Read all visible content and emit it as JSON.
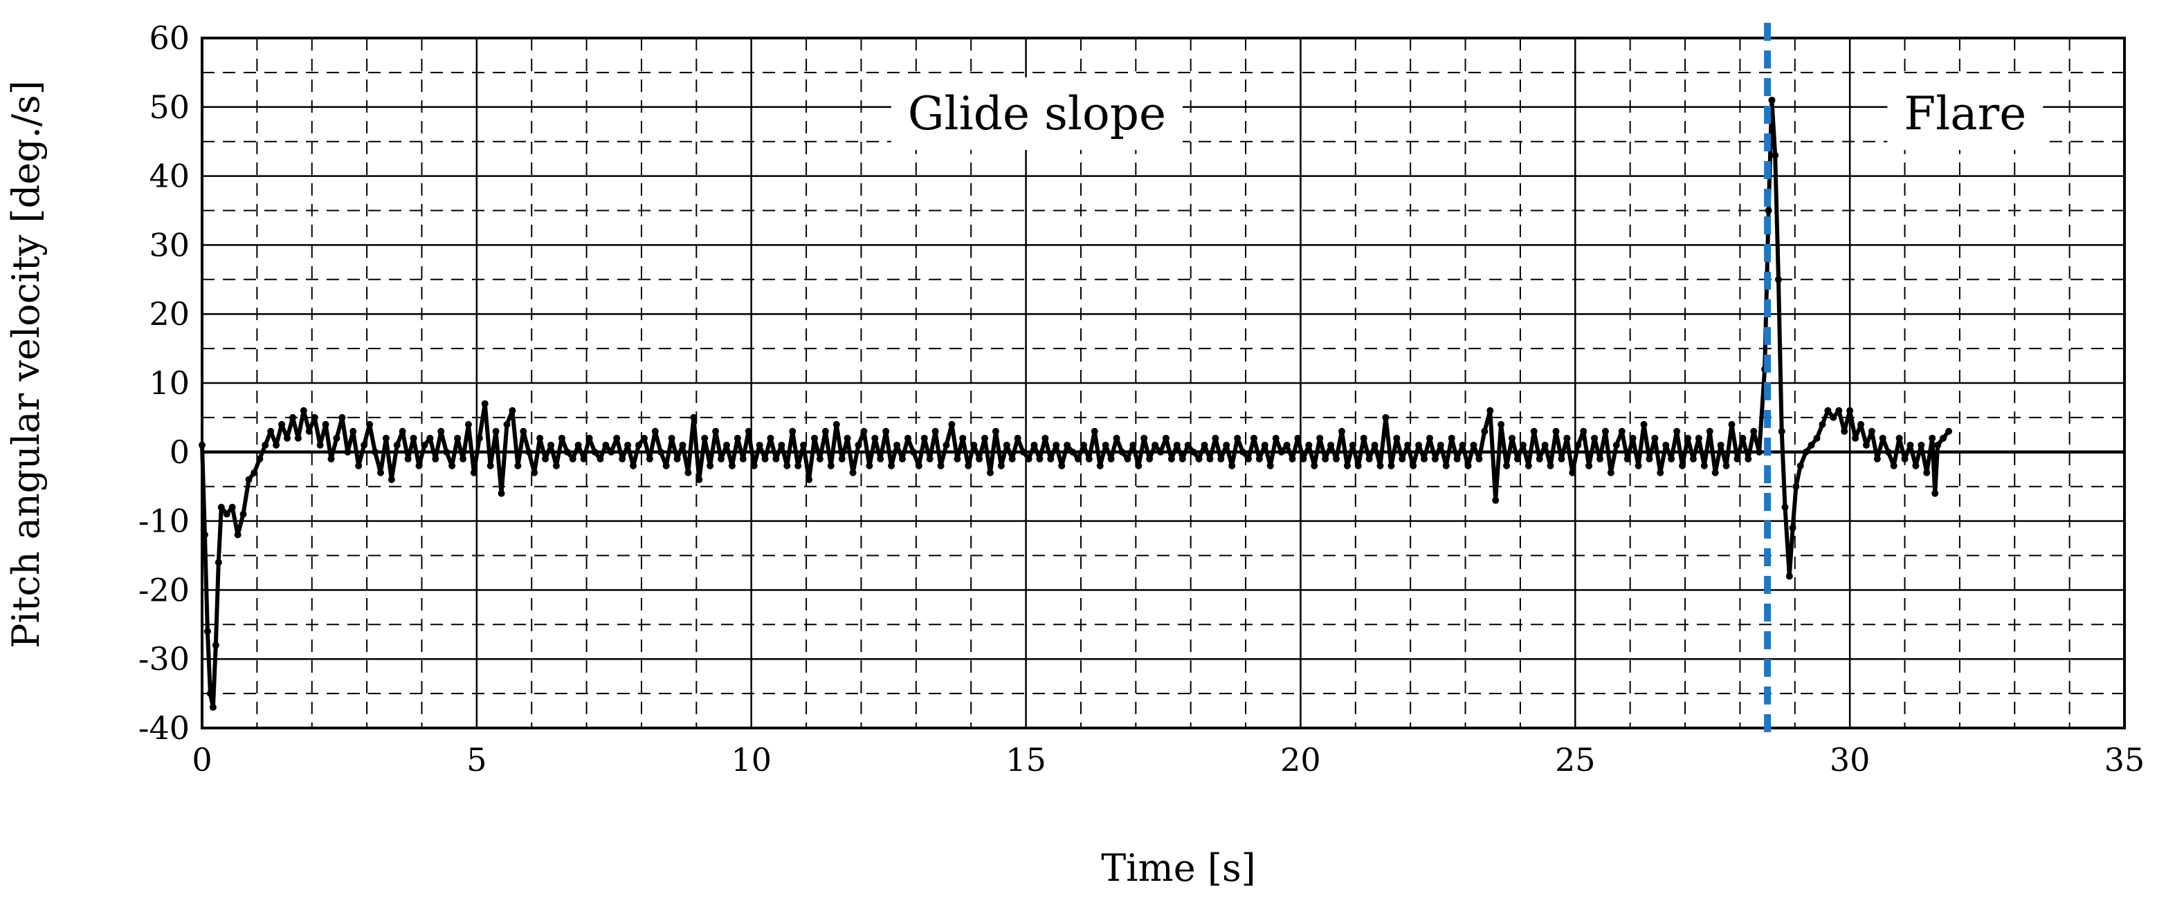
{
  "chart_data": {
    "type": "line",
    "xlabel": "Time [s]",
    "ylabel": "Pitch angular velocity [deg./s]",
    "xlim": [
      0,
      35
    ],
    "ylim": [
      -40,
      60
    ],
    "x_ticks": [
      "0",
      "5",
      "10",
      "15",
      "20",
      "25",
      "30",
      "35"
    ],
    "y_ticks": [
      "60",
      "50",
      "40",
      "30",
      "20",
      "10",
      "0",
      "-10",
      "-20",
      "-30",
      "-40"
    ],
    "grid": true,
    "legend": "none",
    "phase_divider": {
      "x": 28.5,
      "style": "dashed",
      "color": "#1f77c8"
    },
    "annotations": [
      {
        "text": "Glide slope",
        "x": 15.2,
        "y": 49
      },
      {
        "text": "Flare",
        "x": 32.1,
        "y": 49
      }
    ],
    "series": [
      {
        "color": "#000000",
        "points": [
          [
            0.0,
            1
          ],
          [
            0.05,
            -12
          ],
          [
            0.1,
            -26
          ],
          [
            0.15,
            -35
          ],
          [
            0.2,
            -37
          ],
          [
            0.25,
            -28
          ],
          [
            0.3,
            -16
          ],
          [
            0.35,
            -8
          ],
          [
            0.45,
            -9
          ],
          [
            0.55,
            -8
          ],
          [
            0.65,
            -12
          ],
          [
            0.75,
            -9
          ],
          [
            0.85,
            -4
          ],
          [
            0.95,
            -3
          ],
          [
            1.05,
            -1
          ],
          [
            1.15,
            1
          ],
          [
            1.25,
            3
          ],
          [
            1.35,
            1
          ],
          [
            1.45,
            4
          ],
          [
            1.55,
            2
          ],
          [
            1.65,
            5
          ],
          [
            1.75,
            2
          ],
          [
            1.85,
            6
          ],
          [
            1.95,
            3
          ],
          [
            2.05,
            5
          ],
          [
            2.15,
            1
          ],
          [
            2.25,
            4
          ],
          [
            2.35,
            -1
          ],
          [
            2.45,
            2
          ],
          [
            2.55,
            5
          ],
          [
            2.65,
            0
          ],
          [
            2.75,
            3
          ],
          [
            2.85,
            -2
          ],
          [
            2.95,
            1
          ],
          [
            3.05,
            4
          ],
          [
            3.15,
            0
          ],
          [
            3.25,
            -3
          ],
          [
            3.35,
            2
          ],
          [
            3.45,
            -4
          ],
          [
            3.55,
            1
          ],
          [
            3.65,
            3
          ],
          [
            3.75,
            -1
          ],
          [
            3.85,
            2
          ],
          [
            3.95,
            -2
          ],
          [
            4.05,
            1
          ],
          [
            4.15,
            2
          ],
          [
            4.25,
            -1
          ],
          [
            4.35,
            3
          ],
          [
            4.45,
            0
          ],
          [
            4.55,
            -2
          ],
          [
            4.65,
            2
          ],
          [
            4.75,
            -1
          ],
          [
            4.85,
            4
          ],
          [
            4.95,
            -3
          ],
          [
            5.05,
            2
          ],
          [
            5.15,
            7
          ],
          [
            5.25,
            -2
          ],
          [
            5.35,
            3
          ],
          [
            5.45,
            -6
          ],
          [
            5.55,
            4
          ],
          [
            5.65,
            6
          ],
          [
            5.75,
            -2
          ],
          [
            5.85,
            3
          ],
          [
            5.95,
            0
          ],
          [
            6.05,
            -3
          ],
          [
            6.15,
            2
          ],
          [
            6.25,
            -1
          ],
          [
            6.35,
            1
          ],
          [
            6.45,
            -2
          ],
          [
            6.55,
            2
          ],
          [
            6.65,
            0
          ],
          [
            6.75,
            -1
          ],
          [
            6.85,
            1
          ],
          [
            6.95,
            -1
          ],
          [
            7.05,
            2
          ],
          [
            7.15,
            0
          ],
          [
            7.25,
            -1
          ],
          [
            7.35,
            1
          ],
          [
            7.45,
            0
          ],
          [
            7.55,
            2
          ],
          [
            7.65,
            -1
          ],
          [
            7.75,
            1
          ],
          [
            7.85,
            -2
          ],
          [
            7.95,
            1
          ],
          [
            8.05,
            2
          ],
          [
            8.15,
            -1
          ],
          [
            8.25,
            3
          ],
          [
            8.35,
            0
          ],
          [
            8.45,
            -2
          ],
          [
            8.55,
            2
          ],
          [
            8.65,
            -1
          ],
          [
            8.75,
            1
          ],
          [
            8.85,
            -3
          ],
          [
            8.95,
            5
          ],
          [
            9.05,
            -4
          ],
          [
            9.15,
            2
          ],
          [
            9.25,
            -2
          ],
          [
            9.35,
            3
          ],
          [
            9.45,
            -1
          ],
          [
            9.55,
            1
          ],
          [
            9.65,
            -2
          ],
          [
            9.75,
            2
          ],
          [
            9.85,
            -1
          ],
          [
            9.95,
            3
          ],
          [
            10.05,
            -2
          ],
          [
            10.15,
            1
          ],
          [
            10.25,
            -1
          ],
          [
            10.35,
            2
          ],
          [
            10.45,
            -1
          ],
          [
            10.55,
            1
          ],
          [
            10.65,
            -2
          ],
          [
            10.75,
            3
          ],
          [
            10.85,
            -2
          ],
          [
            10.95,
            1
          ],
          [
            11.05,
            -4
          ],
          [
            11.15,
            2
          ],
          [
            11.25,
            -1
          ],
          [
            11.35,
            3
          ],
          [
            11.45,
            -2
          ],
          [
            11.55,
            4
          ],
          [
            11.65,
            -1
          ],
          [
            11.75,
            2
          ],
          [
            11.85,
            -3
          ],
          [
            11.95,
            1
          ],
          [
            12.05,
            3
          ],
          [
            12.15,
            -2
          ],
          [
            12.25,
            2
          ],
          [
            12.35,
            -1
          ],
          [
            12.45,
            3
          ],
          [
            12.55,
            -2
          ],
          [
            12.65,
            1
          ],
          [
            12.75,
            -1
          ],
          [
            12.85,
            2
          ],
          [
            12.95,
            0
          ],
          [
            13.05,
            -2
          ],
          [
            13.15,
            2
          ],
          [
            13.25,
            -1
          ],
          [
            13.35,
            3
          ],
          [
            13.45,
            -2
          ],
          [
            13.55,
            1
          ],
          [
            13.65,
            4
          ],
          [
            13.75,
            -1
          ],
          [
            13.85,
            2
          ],
          [
            13.95,
            -2
          ],
          [
            14.05,
            1
          ],
          [
            14.15,
            -1
          ],
          [
            14.25,
            2
          ],
          [
            14.35,
            -3
          ],
          [
            14.45,
            3
          ],
          [
            14.55,
            -2
          ],
          [
            14.65,
            1
          ],
          [
            14.75,
            -1
          ],
          [
            14.85,
            2
          ],
          [
            14.95,
            0
          ],
          [
            15.05,
            -1
          ],
          [
            15.15,
            1
          ],
          [
            15.25,
            -1
          ],
          [
            15.35,
            2
          ],
          [
            15.45,
            -1
          ],
          [
            15.55,
            1
          ],
          [
            15.65,
            -2
          ],
          [
            15.75,
            1
          ],
          [
            15.85,
            0
          ],
          [
            15.95,
            -1
          ],
          [
            16.05,
            1
          ],
          [
            16.15,
            -1
          ],
          [
            16.25,
            3
          ],
          [
            16.35,
            -2
          ],
          [
            16.45,
            1
          ],
          [
            16.55,
            -1
          ],
          [
            16.65,
            2
          ],
          [
            16.75,
            0
          ],
          [
            16.85,
            -1
          ],
          [
            16.95,
            1
          ],
          [
            17.05,
            -2
          ],
          [
            17.15,
            2
          ],
          [
            17.25,
            -1
          ],
          [
            17.35,
            1
          ],
          [
            17.45,
            0
          ],
          [
            17.55,
            2
          ],
          [
            17.65,
            -1
          ],
          [
            17.75,
            1
          ],
          [
            17.85,
            -1
          ],
          [
            17.95,
            1
          ],
          [
            18.05,
            0
          ],
          [
            18.15,
            -1
          ],
          [
            18.25,
            1
          ],
          [
            18.35,
            -1
          ],
          [
            18.45,
            2
          ],
          [
            18.55,
            -1
          ],
          [
            18.65,
            1
          ],
          [
            18.75,
            -2
          ],
          [
            18.85,
            2
          ],
          [
            18.95,
            0
          ],
          [
            19.05,
            -1
          ],
          [
            19.15,
            2
          ],
          [
            19.25,
            -1
          ],
          [
            19.35,
            1
          ],
          [
            19.45,
            -2
          ],
          [
            19.55,
            2
          ],
          [
            19.65,
            0
          ],
          [
            19.75,
            1
          ],
          [
            19.85,
            -1
          ],
          [
            19.95,
            2
          ],
          [
            20.05,
            -1
          ],
          [
            20.15,
            1
          ],
          [
            20.25,
            -2
          ],
          [
            20.35,
            2
          ],
          [
            20.45,
            -1
          ],
          [
            20.55,
            1
          ],
          [
            20.65,
            -1
          ],
          [
            20.75,
            3
          ],
          [
            20.85,
            -2
          ],
          [
            20.95,
            1
          ],
          [
            21.05,
            -2
          ],
          [
            21.15,
            2
          ],
          [
            21.25,
            -1
          ],
          [
            21.35,
            1
          ],
          [
            21.45,
            -2
          ],
          [
            21.55,
            5
          ],
          [
            21.65,
            -2
          ],
          [
            21.75,
            2
          ],
          [
            21.85,
            -1
          ],
          [
            21.95,
            1
          ],
          [
            22.05,
            -2
          ],
          [
            22.15,
            1
          ],
          [
            22.25,
            -1
          ],
          [
            22.35,
            2
          ],
          [
            22.45,
            -1
          ],
          [
            22.55,
            1
          ],
          [
            22.65,
            -2
          ],
          [
            22.75,
            2
          ],
          [
            22.85,
            -1
          ],
          [
            22.95,
            1
          ],
          [
            23.05,
            -2
          ],
          [
            23.15,
            1
          ],
          [
            23.25,
            -1
          ],
          [
            23.35,
            3
          ],
          [
            23.45,
            6
          ],
          [
            23.55,
            -7
          ],
          [
            23.65,
            4
          ],
          [
            23.75,
            -2
          ],
          [
            23.85,
            2
          ],
          [
            23.95,
            -1
          ],
          [
            24.05,
            1
          ],
          [
            24.15,
            -2
          ],
          [
            24.25,
            3
          ],
          [
            24.35,
            -1
          ],
          [
            24.45,
            1
          ],
          [
            24.55,
            -2
          ],
          [
            24.65,
            3
          ],
          [
            24.75,
            -1
          ],
          [
            24.85,
            2
          ],
          [
            24.95,
            -3
          ],
          [
            25.05,
            1
          ],
          [
            25.15,
            3
          ],
          [
            25.25,
            -2
          ],
          [
            25.35,
            2
          ],
          [
            25.45,
            -1
          ],
          [
            25.55,
            3
          ],
          [
            25.65,
            -3
          ],
          [
            25.75,
            1
          ],
          [
            25.85,
            3
          ],
          [
            25.95,
            -1
          ],
          [
            26.05,
            2
          ],
          [
            26.15,
            -2
          ],
          [
            26.25,
            4
          ],
          [
            26.35,
            -1
          ],
          [
            26.45,
            2
          ],
          [
            26.55,
            -3
          ],
          [
            26.65,
            1
          ],
          [
            26.75,
            -1
          ],
          [
            26.85,
            3
          ],
          [
            26.95,
            -2
          ],
          [
            27.05,
            2
          ],
          [
            27.15,
            -1
          ],
          [
            27.25,
            2
          ],
          [
            27.35,
            -2
          ],
          [
            27.45,
            3
          ],
          [
            27.55,
            -3
          ],
          [
            27.65,
            1
          ],
          [
            27.75,
            -2
          ],
          [
            27.85,
            4
          ],
          [
            27.95,
            -1
          ],
          [
            28.05,
            2
          ],
          [
            28.15,
            -1
          ],
          [
            28.25,
            3
          ],
          [
            28.35,
            0
          ],
          [
            28.45,
            12
          ],
          [
            28.52,
            35
          ],
          [
            28.58,
            51
          ],
          [
            28.64,
            43
          ],
          [
            28.7,
            25
          ],
          [
            28.76,
            3
          ],
          [
            28.82,
            -8
          ],
          [
            28.9,
            -18
          ],
          [
            28.96,
            -11
          ],
          [
            29.02,
            -5
          ],
          [
            29.1,
            -2
          ],
          [
            29.2,
            0
          ],
          [
            29.3,
            1
          ],
          [
            29.4,
            2
          ],
          [
            29.5,
            4
          ],
          [
            29.6,
            6
          ],
          [
            29.7,
            5
          ],
          [
            29.8,
            6
          ],
          [
            29.9,
            3
          ],
          [
            30.0,
            6
          ],
          [
            30.1,
            2
          ],
          [
            30.2,
            4
          ],
          [
            30.3,
            1
          ],
          [
            30.4,
            3
          ],
          [
            30.5,
            -1
          ],
          [
            30.6,
            2
          ],
          [
            30.7,
            0
          ],
          [
            30.8,
            -2
          ],
          [
            30.9,
            2
          ],
          [
            31.0,
            -1
          ],
          [
            31.1,
            1
          ],
          [
            31.2,
            -2
          ],
          [
            31.3,
            1
          ],
          [
            31.4,
            -3
          ],
          [
            31.5,
            2
          ],
          [
            31.55,
            -6
          ],
          [
            31.6,
            1
          ],
          [
            31.7,
            2
          ],
          [
            31.8,
            3
          ]
        ]
      }
    ]
  }
}
